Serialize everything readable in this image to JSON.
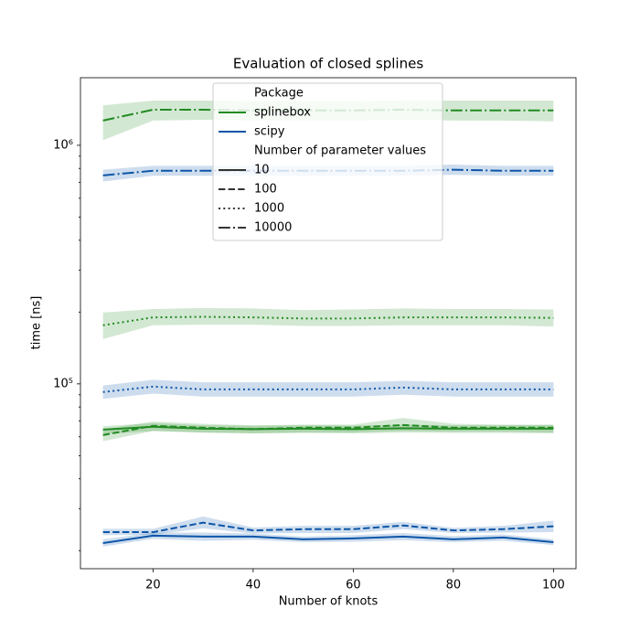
{
  "chart_data": {
    "type": "line",
    "title": "Evaluation of closed splines",
    "xlabel": "Number of knots",
    "ylabel": "time [ns]",
    "x": [
      10,
      20,
      30,
      40,
      50,
      60,
      70,
      80,
      90,
      100
    ],
    "xlim": [
      5.5,
      104.5
    ],
    "xticks": [
      20,
      40,
      60,
      80,
      100
    ],
    "yscale": "log",
    "ylim": [
      16800,
      1920000
    ],
    "yticks": [
      {
        "value": 100000,
        "label": "10⁵"
      },
      {
        "value": 1000000,
        "label": "10⁶"
      }
    ],
    "yminorticks": [
      20000,
      30000,
      40000,
      50000,
      60000,
      70000,
      80000,
      90000,
      200000,
      300000,
      400000,
      500000,
      600000,
      700000,
      800000,
      900000
    ],
    "legend": {
      "loc": "upper center",
      "hue_title": "Package",
      "hue": [
        {
          "name": "splinebox",
          "color": "#228b22"
        },
        {
          "name": "scipy",
          "color": "#0c56a8"
        }
      ],
      "style_title": "Number of parameter values",
      "style": [
        {
          "name": "10",
          "dash": "solid"
        },
        {
          "name": "100",
          "dash": "dashed"
        },
        {
          "name": "1000",
          "dash": "dotted"
        },
        {
          "name": "10000",
          "dash": "dashdot"
        }
      ]
    },
    "series": [
      {
        "hue": 0,
        "style": 0,
        "values": [
          64300,
          66100,
          64900,
          64600,
          64900,
          64600,
          65200,
          64900,
          64900,
          64900
        ],
        "ci_low": [
          61500,
          63500,
          62500,
          62000,
          62300,
          62000,
          62500,
          62300,
          62300,
          62000
        ],
        "ci_high": [
          66500,
          68500,
          67000,
          66800,
          67000,
          66800,
          67500,
          67000,
          67000,
          67200
        ]
      },
      {
        "hue": 0,
        "style": 1,
        "values": [
          61000,
          66700,
          65500,
          64600,
          65500,
          65500,
          67200,
          65500,
          65500,
          65500
        ],
        "ci_low": [
          57500,
          63500,
          62500,
          62000,
          62500,
          62500,
          63500,
          63000,
          63000,
          62500
        ],
        "ci_high": [
          64500,
          69500,
          68000,
          67000,
          67500,
          67500,
          72000,
          68000,
          67500,
          67500
        ]
      },
      {
        "hue": 0,
        "style": 2,
        "values": [
          176000,
          190000,
          191000,
          190000,
          188000,
          188000,
          190000,
          190000,
          190000,
          189000
        ],
        "ci_low": [
          154000,
          176000,
          177000,
          177000,
          175000,
          175000,
          176000,
          176000,
          176000,
          174000
        ],
        "ci_high": [
          199000,
          206000,
          208000,
          207000,
          204000,
          205000,
          207000,
          206000,
          206000,
          205000
        ]
      },
      {
        "hue": 0,
        "style": 3,
        "values": [
          1270000,
          1410000,
          1410000,
          1400000,
          1400000,
          1400000,
          1410000,
          1400000,
          1400000,
          1400000
        ],
        "ci_low": [
          1050000,
          1270000,
          1280000,
          1270000,
          1270000,
          1270000,
          1280000,
          1270000,
          1270000,
          1260000
        ],
        "ci_high": [
          1470000,
          1540000,
          1540000,
          1530000,
          1530000,
          1530000,
          1540000,
          1540000,
          1540000,
          1540000
        ]
      },
      {
        "hue": 1,
        "style": 0,
        "values": [
          21500,
          23100,
          22900,
          22900,
          22300,
          22500,
          22900,
          22300,
          22700,
          21700
        ],
        "ci_low": [
          20800,
          22400,
          22000,
          22200,
          21700,
          21800,
          22100,
          21700,
          22000,
          21100
        ],
        "ci_high": [
          22300,
          23800,
          23800,
          23600,
          22900,
          23200,
          23700,
          23000,
          23400,
          22300
        ]
      },
      {
        "hue": 1,
        "style": 1,
        "values": [
          23900,
          23900,
          26200,
          24300,
          24600,
          24600,
          25500,
          24300,
          24600,
          25300
        ],
        "ci_low": [
          23200,
          23300,
          24800,
          23600,
          23700,
          23700,
          24600,
          23700,
          23800,
          23900
        ],
        "ci_high": [
          24700,
          24700,
          27800,
          25000,
          25400,
          25400,
          26400,
          24900,
          25400,
          26700
        ]
      },
      {
        "hue": 1,
        "style": 2,
        "values": [
          92400,
          97400,
          94800,
          94800,
          94800,
          94800,
          96500,
          94800,
          94800,
          94800
        ],
        "ci_low": [
          86500,
          91000,
          88500,
          88500,
          88500,
          88500,
          90000,
          88500,
          88500,
          88500
        ],
        "ci_high": [
          98500,
          104000,
          101500,
          101500,
          101500,
          101500,
          103000,
          101500,
          101500,
          101500
        ]
      },
      {
        "hue": 1,
        "style": 3,
        "values": [
          748000,
          782000,
          782000,
          782000,
          782000,
          782000,
          782000,
          790000,
          782000,
          782000
        ],
        "ci_low": [
          705000,
          745000,
          745000,
          745000,
          745000,
          745000,
          745000,
          752000,
          745000,
          745000
        ],
        "ci_high": [
          790000,
          820000,
          820000,
          820000,
          820000,
          820000,
          820000,
          830000,
          820000,
          820000
        ]
      }
    ]
  }
}
